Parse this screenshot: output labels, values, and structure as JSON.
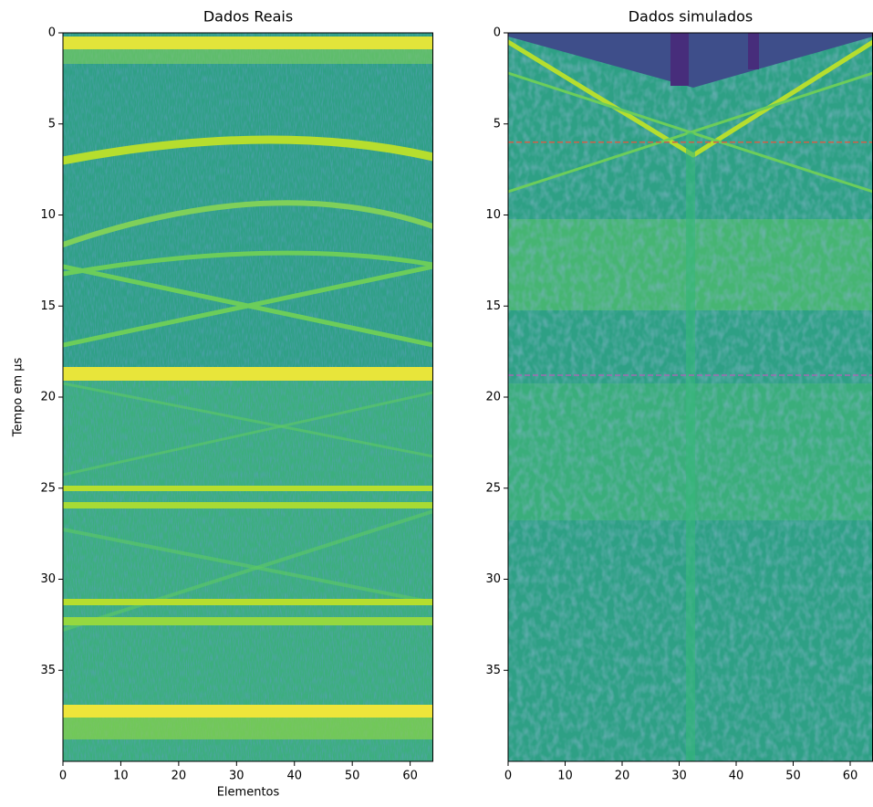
{
  "chart_data": [
    {
      "type": "image",
      "title": "Dados Reais",
      "xlabel": "Elementos",
      "ylabel": "Tempo em μs",
      "xlim": [
        0,
        64
      ],
      "ylim": [
        40,
        0
      ],
      "xticks": [
        0,
        10,
        20,
        30,
        40,
        50,
        60
      ],
      "yticks": [
        0,
        5,
        10,
        15,
        20,
        25,
        30,
        35
      ]
    },
    {
      "type": "image",
      "title": "Dados simulados",
      "xlim": [
        0,
        64
      ],
      "ylim": [
        40,
        0
      ],
      "xticks": [
        0,
        10,
        20,
        30,
        40,
        50,
        60
      ],
      "yticks": [
        0,
        5,
        10,
        15,
        20,
        25,
        30,
        35
      ],
      "hlines": [
        {
          "value": 6,
          "color": "#d0604a"
        },
        {
          "value": 18.8,
          "color": "#a46ab4"
        }
      ]
    }
  ]
}
